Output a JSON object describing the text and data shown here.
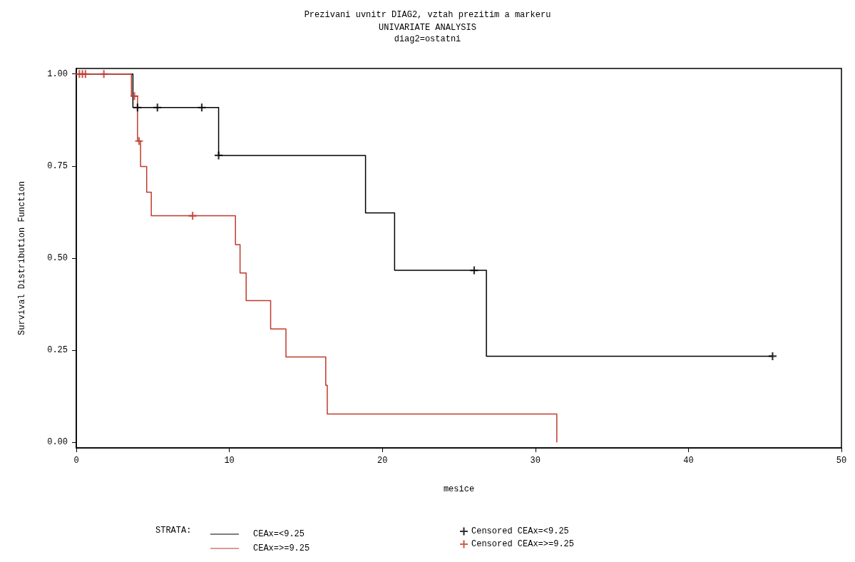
{
  "chart_data": {
    "type": "step",
    "title": "Prezivani uvnitr DIAG2, vztah prezitim a markeru",
    "subtitle": "UNIVARIATE ANALYSIS\ndiag2=ostatni",
    "xlabel": "mesice",
    "ylabel": "Survival Distribution Function",
    "legend_title": "STRATA:",
    "xlim": [
      0,
      50
    ],
    "xticks": [
      0,
      10,
      20,
      30,
      40,
      50
    ],
    "ylim": [
      -0.015,
      1.015
    ],
    "yticks": [
      {
        "value": 0,
        "label": "0.00"
      },
      {
        "value": 0.25,
        "label": "0.25"
      },
      {
        "value": 0.5,
        "label": "0.50"
      },
      {
        "value": 0.75,
        "label": "0.75"
      },
      {
        "value": 1,
        "label": "1.00"
      }
    ],
    "grid": false,
    "legend": "bottom",
    "line_style": "solid",
    "series": [
      {
        "name": "CEAx=<9.25",
        "color": "#000000",
        "marker": "none",
        "x": [
          0,
          3.7,
          9.3,
          18.9,
          20.8,
          26.8,
          45.5
        ],
        "values": [
          1,
          0.909,
          0.779,
          0.623,
          0.467,
          0.234,
          0.234
        ]
      },
      {
        "name": "CEAx=>=9.25",
        "color": "#c0392b",
        "marker": "none",
        "x": [
          0,
          3.6,
          4.0,
          4.2,
          4.6,
          4.9,
          10.4,
          10.7,
          11.1,
          12.7,
          13.7,
          16.3,
          16.4,
          31.4,
          31.4
        ],
        "values": [
          1,
          0.94,
          0.818,
          0.749,
          0.679,
          0.615,
          0.537,
          0.46,
          0.385,
          0.308,
          0.232,
          0.155,
          0.077,
          0.077,
          0
        ]
      },
      {
        "name": "Censored CEAx=<9.25",
        "type": "scatter",
        "color": "#000000",
        "marker": "cross",
        "x": [
          4.0,
          5.3,
          8.2,
          9.3,
          26.0,
          45.5
        ],
        "values": [
          0.909,
          0.909,
          0.909,
          0.779,
          0.467,
          0.234
        ]
      },
      {
        "name": "Censored CEAx=>=9.25",
        "type": "scatter",
        "color": "#c0392b",
        "marker": "cross",
        "x": [
          0.2,
          0.4,
          0.6,
          1.8,
          3.8,
          4.1,
          7.6
        ],
        "values": [
          1,
          1,
          1,
          1,
          0.94,
          0.818,
          0.615
        ]
      }
    ]
  }
}
